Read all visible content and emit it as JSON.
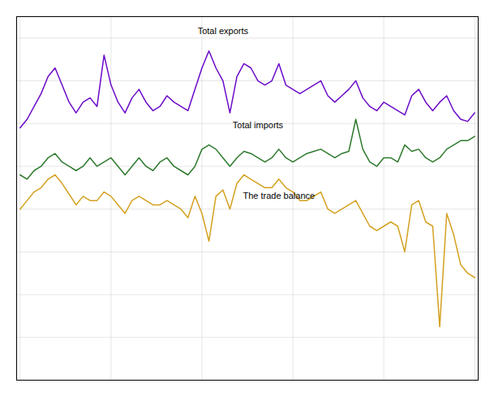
{
  "chart_data": {
    "type": "line",
    "x": [
      0,
      1,
      2,
      3,
      4,
      5,
      6,
      7,
      8,
      9,
      10,
      11,
      12,
      13,
      14,
      15,
      16,
      17,
      18,
      19,
      20,
      21,
      22,
      23,
      24,
      25,
      26,
      27,
      28,
      29,
      30,
      31,
      32,
      33,
      34,
      35,
      36,
      37,
      38,
      39,
      40,
      41,
      42,
      43,
      44,
      45,
      46,
      47,
      48,
      49,
      50,
      51,
      52,
      53,
      54,
      55,
      56,
      57,
      58,
      59,
      60,
      61,
      62,
      63,
      64,
      65
    ],
    "series": [
      {
        "color": "#6b0ac9",
        "values": [
          58,
          62,
          68,
          74,
          82,
          86,
          78,
          70,
          65,
          70,
          72,
          68,
          92,
          78,
          70,
          65,
          72,
          76,
          70,
          66,
          68,
          73,
          70,
          68,
          66,
          76,
          86,
          94,
          86,
          80,
          65,
          82,
          88,
          86,
          80,
          78,
          80,
          88,
          78,
          76,
          74,
          76,
          78,
          80,
          73,
          70,
          73,
          76,
          80,
          72,
          68,
          66,
          70,
          68,
          66,
          64,
          73,
          76,
          70,
          66,
          70,
          73,
          66,
          62,
          61,
          65
        ]
      },
      {
        "color": "#2d7a2d",
        "values": [
          36,
          34,
          38,
          40,
          44,
          46,
          42,
          40,
          38,
          40,
          44,
          40,
          42,
          44,
          40,
          36,
          40,
          44,
          40,
          38,
          42,
          44,
          40,
          38,
          36,
          40,
          48,
          50,
          48,
          44,
          40,
          44,
          47,
          46,
          44,
          42,
          44,
          48,
          44,
          42,
          44,
          46,
          47,
          48,
          46,
          44,
          46,
          47,
          62,
          48,
          42,
          40,
          44,
          44,
          42,
          50,
          47,
          48,
          44,
          42,
          44,
          48,
          50,
          52,
          52,
          54
        ]
      },
      {
        "color": "#d4a020",
        "values": [
          20,
          24,
          28,
          30,
          34,
          36,
          32,
          27,
          22,
          26,
          24,
          24,
          28,
          26,
          22,
          18,
          24,
          26,
          24,
          22,
          22,
          24,
          22,
          20,
          16,
          26,
          18,
          5,
          26,
          29,
          20,
          32,
          36,
          34,
          32,
          30,
          30,
          34,
          30,
          28,
          24,
          24,
          26,
          28,
          20,
          18,
          20,
          22,
          24,
          18,
          12,
          10,
          12,
          14,
          12,
          0,
          22,
          24,
          14,
          12,
          -35,
          18,
          8,
          -6,
          -10,
          -12
        ]
      }
    ],
    "annotations": [
      {
        "text": "Total exports",
        "x": 29,
        "y": 102
      },
      {
        "text": "Total imports",
        "x": 34,
        "y": 58
      },
      {
        "text": "The trade balance",
        "x": 37,
        "y": 25
      }
    ],
    "xlim": [
      -0.5,
      65.5
    ],
    "xticks": [
      0,
      13,
      26,
      39,
      52,
      65
    ],
    "ylim": [
      -60,
      110
    ],
    "yticks": [
      -60,
      -40,
      -20,
      0,
      20,
      40,
      60,
      80,
      100
    ],
    "grid": true,
    "tick_labels": false
  }
}
